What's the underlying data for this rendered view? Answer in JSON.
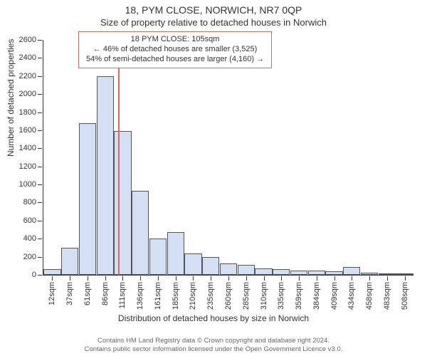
{
  "title_line1": "18, PYM CLOSE, NORWICH, NR7 0QP",
  "title_line2": "Size of property relative to detached houses in Norwich",
  "annotation": {
    "line1": "18 PYM CLOSE: 105sqm",
    "line2": "← 46% of detached houses are smaller (3,525)",
    "line3": "54% of semi-detached houses are larger (4,160) →"
  },
  "ylabel": "Number of detached properties",
  "xlabel": "Distribution of detached houses by size in Norwich",
  "footer_line1": "Contains HM Land Registry data © Crown copyright and database right 2024.",
  "footer_line2": "Contains public sector information licensed under the Open Government Licence v3.0.",
  "chart": {
    "type": "histogram",
    "ylim": [
      0,
      2600
    ],
    "ytick_step": 200,
    "background_color": "#ffffff",
    "bar_fill": "#d3dff2",
    "bar_border": "#555555",
    "marker_color": "#e06666",
    "marker_value_sqm": 105,
    "x_range_sqm": [
      0,
      520
    ],
    "categories": [
      "12sqm",
      "37sqm",
      "61sqm",
      "86sqm",
      "111sqm",
      "136sqm",
      "161sqm",
      "185sqm",
      "210sqm",
      "235sqm",
      "260sqm",
      "285sqm",
      "310sqm",
      "335sqm",
      "359sqm",
      "384sqm",
      "409sqm",
      "434sqm",
      "458sqm",
      "483sqm",
      "508sqm"
    ],
    "values": [
      60,
      300,
      1680,
      2200,
      1590,
      930,
      400,
      470,
      240,
      200,
      130,
      110,
      70,
      60,
      50,
      45,
      40,
      90,
      20,
      15,
      10
    ],
    "bar_width_ratio": 0.98,
    "title_fontsize": 14,
    "label_fontsize": 12,
    "tick_fontsize": 11
  }
}
